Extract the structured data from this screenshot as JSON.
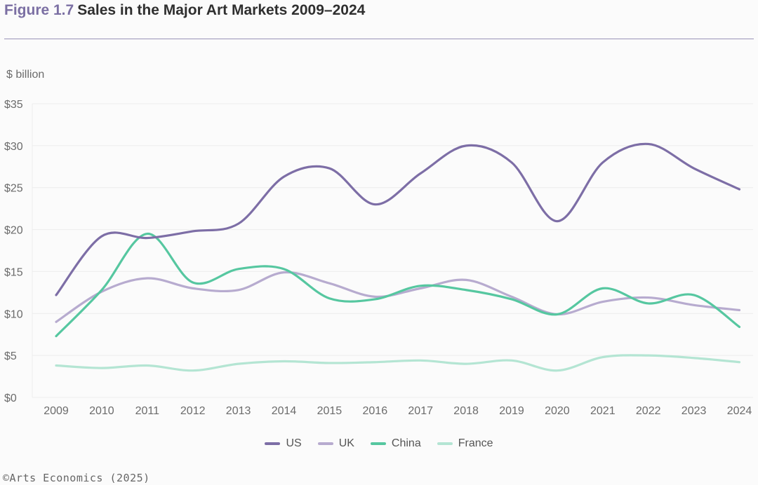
{
  "header": {
    "figure_number": "Figure 1.7",
    "title": "Sales in the Major Art Markets 2009–2024"
  },
  "credit": "©Arts Economics (2025)",
  "colors": {
    "title_accent": "#7b6fa3",
    "US": "#7d6ea6",
    "UK": "#b7abcf",
    "China": "#56c7a0",
    "France": "#b4e5d3",
    "grid": "#ececec",
    "rule": "#9a93b8"
  },
  "chart_data": {
    "type": "line",
    "title": "Sales in the Major Art Markets 2009–2024",
    "xlabel": "",
    "ylabel": "$ billion",
    "ylim": [
      0,
      35
    ],
    "ytick_values": [
      0,
      5,
      10,
      15,
      20,
      25,
      30,
      35
    ],
    "ytick_labels": [
      "$0",
      "$5",
      "$10",
      "$15",
      "$20",
      "$25",
      "$30",
      "$35"
    ],
    "grid": true,
    "legend_position": "bottom-center",
    "categories": [
      "2009",
      "2010",
      "2011",
      "2012",
      "2013",
      "2014",
      "2015",
      "2016",
      "2017",
      "2018",
      "2019",
      "2020",
      "2021",
      "2022",
      "2023",
      "2024"
    ],
    "series": [
      {
        "name": "US",
        "color": "#7d6ea6",
        "values": [
          12.2,
          19.2,
          19.0,
          19.8,
          20.7,
          26.3,
          27.3,
          23.0,
          26.7,
          30.0,
          28.0,
          21.0,
          28.0,
          30.2,
          27.3,
          24.8
        ]
      },
      {
        "name": "UK",
        "color": "#b7abcf",
        "values": [
          9.0,
          12.6,
          14.2,
          13.0,
          12.8,
          14.9,
          13.6,
          12.0,
          13.0,
          14.0,
          12.0,
          9.9,
          11.4,
          11.9,
          11.0,
          10.4
        ]
      },
      {
        "name": "China",
        "color": "#56c7a0",
        "values": [
          7.3,
          12.8,
          19.5,
          13.7,
          15.3,
          15.3,
          11.8,
          11.7,
          13.3,
          12.8,
          11.7,
          9.9,
          13.0,
          11.2,
          12.2,
          8.4
        ]
      },
      {
        "name": "France",
        "color": "#b4e5d3",
        "values": [
          3.8,
          3.5,
          3.8,
          3.2,
          4.0,
          4.3,
          4.1,
          4.2,
          4.4,
          4.0,
          4.4,
          3.2,
          4.8,
          5.0,
          4.7,
          4.2
        ]
      }
    ]
  }
}
